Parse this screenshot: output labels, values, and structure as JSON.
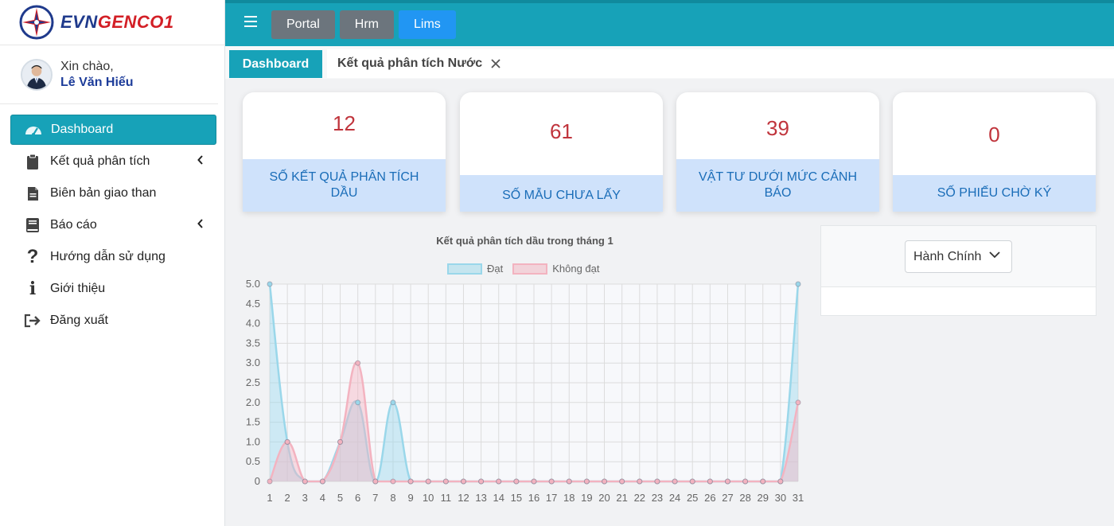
{
  "brand": {
    "name_part1": "EVN",
    "name_part2": "GENCO1"
  },
  "user": {
    "greeting": "Xin chào,",
    "name": "Lê Văn Hiếu"
  },
  "sidebar": {
    "items": [
      {
        "label": "Dashboard",
        "icon": "dashboard-gauge-icon",
        "active": true
      },
      {
        "label": "Kết quả phân tích",
        "icon": "clipboard-icon",
        "has_submenu": true
      },
      {
        "label": "Biên bản giao than",
        "icon": "document-icon"
      },
      {
        "label": "Báo cáo",
        "icon": "book-icon",
        "has_submenu": true
      },
      {
        "label": "Hướng dẫn sử dụng",
        "icon": "question-icon"
      },
      {
        "label": "Giới thiệu",
        "icon": "info-icon"
      },
      {
        "label": "Đăng xuất",
        "icon": "logout-icon"
      }
    ]
  },
  "topbar": {
    "nav": [
      "Portal",
      "Hrm",
      "Lims"
    ]
  },
  "tabs": {
    "active": "Dashboard",
    "second": "Kết quả phân tích Nước"
  },
  "stats": [
    {
      "value": "12",
      "label": "SỐ KẾT QUẢ PHÂN TÍCH DẦU"
    },
    {
      "value": "61",
      "label": "SỐ MẪU CHƯA LẤY"
    },
    {
      "value": "39",
      "label": "VẬT TƯ DƯỚI MỨC CẢNH BÁO"
    },
    {
      "value": "0",
      "label": "SỐ PHIẾU CHỜ KÝ"
    }
  ],
  "right_panel": {
    "select_value": "Hành Chính"
  },
  "colors": {
    "accent": "#17a2b8",
    "stat_value": "#c0343c",
    "stat_label": "#1a6db8"
  },
  "chart_data": {
    "type": "area",
    "title": "Kết quả phân tích dầu trong tháng 1",
    "legend_position": "top",
    "grid": true,
    "ylim": [
      0,
      5
    ],
    "y_ticks": [
      "0",
      "0.5",
      "1.0",
      "1.5",
      "2.0",
      "2.5",
      "3.0",
      "3.5",
      "4.0",
      "4.5",
      "5.0"
    ],
    "x": [
      1,
      2,
      3,
      4,
      5,
      6,
      7,
      8,
      9,
      10,
      11,
      12,
      13,
      14,
      15,
      16,
      17,
      18,
      19,
      20,
      21,
      22,
      23,
      24,
      25,
      26,
      27,
      28,
      29,
      30,
      31
    ],
    "series": [
      {
        "name": "Đạt",
        "color": "#9ad7ea",
        "values": [
          5,
          1,
          0,
          0,
          1,
          2,
          0,
          2,
          0,
          0,
          0,
          0,
          0,
          0,
          0,
          0,
          0,
          0,
          0,
          0,
          0,
          0,
          0,
          0,
          0,
          0,
          0,
          0,
          0,
          0,
          5
        ]
      },
      {
        "name": "Không đạt",
        "color": "#f3b3c0",
        "values": [
          0,
          1,
          0,
          0,
          1,
          3,
          0,
          0,
          0,
          0,
          0,
          0,
          0,
          0,
          0,
          0,
          0,
          0,
          0,
          0,
          0,
          0,
          0,
          0,
          0,
          0,
          0,
          0,
          0,
          0,
          2
        ]
      }
    ]
  }
}
